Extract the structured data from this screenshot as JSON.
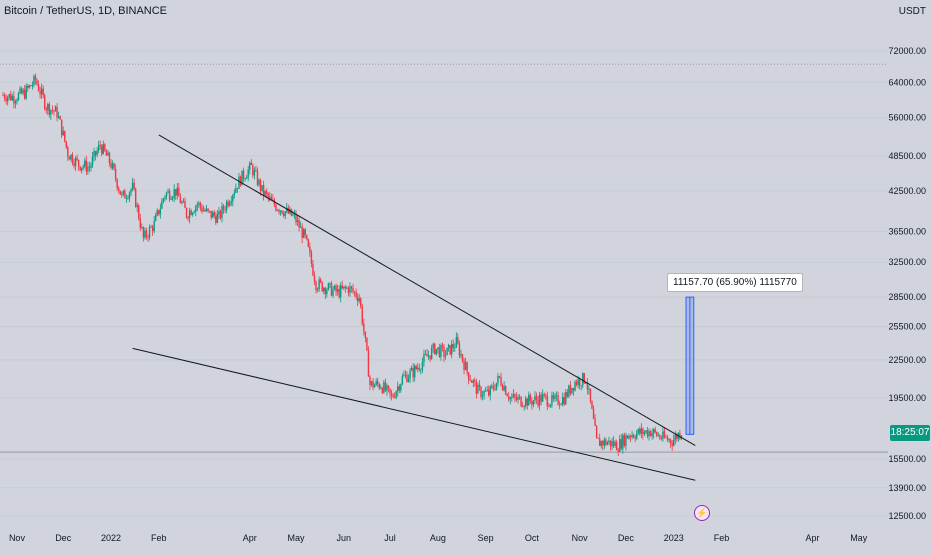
{
  "header": {
    "symbol_title": "Bitcoin / TetherUS, 1D, BINANCE",
    "currency_unit": "USDT"
  },
  "price_label": {
    "countdown": "18:25:07"
  },
  "measure_label": "11157.70 (65.90%) 1115770",
  "icons": {
    "event_icon": "lightning-bolt-icon"
  },
  "colors": {
    "background": "#d1d4dc",
    "up": "#089981",
    "down": "#f23645",
    "trendline": "#131722",
    "measure_fill": "#2962ff",
    "grid": "#c8cbd3"
  },
  "chart_data": {
    "type": "candlestick",
    "title": "Bitcoin / TetherUS, 1D, BINANCE",
    "y_axis_label": "USDT",
    "y_scale": "log",
    "y_ticks": [
      72000,
      64000,
      56000,
      48500,
      42500,
      36500,
      32500,
      28500,
      25500,
      22500,
      19500,
      15500,
      13900,
      12500
    ],
    "y_tick_labels": [
      "72000.00",
      "64000.00",
      "56000.00",
      "48500.00",
      "42500.00",
      "36500.00",
      "32500.00",
      "28500.00",
      "25500.00",
      "22500.00",
      "19500.00",
      "15500.00",
      "13900.00",
      "12500.00"
    ],
    "x_tick_labels": [
      "Nov",
      "Dec",
      "2022",
      "Feb",
      "Apr",
      "May",
      "Jun",
      "Jul",
      "Aug",
      "Sep",
      "Oct",
      "Nov",
      "Dec",
      "2023",
      "Feb",
      "Apr",
      "May"
    ],
    "x_tick_dates": [
      "2021-11-01",
      "2021-12-01",
      "2022-01-01",
      "2022-02-01",
      "2022-04-01",
      "2022-05-01",
      "2022-06-01",
      "2022-07-01",
      "2022-08-01",
      "2022-09-01",
      "2022-10-01",
      "2022-11-01",
      "2022-12-01",
      "2023-01-01",
      "2023-02-01",
      "2023-04-01",
      "2023-05-01"
    ],
    "x_range": [
      "2021-10-21",
      "2023-05-20"
    ],
    "y_range": [
      12000,
      80000
    ],
    "series": {
      "name": "BTCUSDT",
      "weekly_close": [
        [
          "2021-10-23",
          61000
        ],
        [
          "2021-10-30",
          60500
        ],
        [
          "2021-11-06",
          61500
        ],
        [
          "2021-11-13",
          64500
        ],
        [
          "2021-11-20",
          58500
        ],
        [
          "2021-11-27",
          57000
        ],
        [
          "2021-12-04",
          49000
        ],
        [
          "2021-12-11",
          47000
        ],
        [
          "2021-12-18",
          46500
        ],
        [
          "2021-12-25",
          50500
        ],
        [
          "2022-01-01",
          47000
        ],
        [
          "2022-01-08",
          41500
        ],
        [
          "2022-01-15",
          43000
        ],
        [
          "2022-01-22",
          35500
        ],
        [
          "2022-01-29",
          37500
        ],
        [
          "2022-02-05",
          42000
        ],
        [
          "2022-02-12",
          42500
        ],
        [
          "2022-02-19",
          39000
        ],
        [
          "2022-02-26",
          40500
        ],
        [
          "2022-03-05",
          39000
        ],
        [
          "2022-03-12",
          38500
        ],
        [
          "2022-03-19",
          41500
        ],
        [
          "2022-03-26",
          44500
        ],
        [
          "2022-04-02",
          46500
        ],
        [
          "2022-04-09",
          42500
        ],
        [
          "2022-04-16",
          40500
        ],
        [
          "2022-04-23",
          39500
        ],
        [
          "2022-04-30",
          38500
        ],
        [
          "2022-05-07",
          35500
        ],
        [
          "2022-05-14",
          30000
        ],
        [
          "2022-05-21",
          29500
        ],
        [
          "2022-05-28",
          29000
        ],
        [
          "2022-06-04",
          29500
        ],
        [
          "2022-06-11",
          28500
        ],
        [
          "2022-06-18",
          20500
        ],
        [
          "2022-06-25",
          20500
        ],
        [
          "2022-07-02",
          19500
        ],
        [
          "2022-07-09",
          21000
        ],
        [
          "2022-07-16",
          21500
        ],
        [
          "2022-07-23",
          22500
        ],
        [
          "2022-07-30",
          23500
        ],
        [
          "2022-08-06",
          23000
        ],
        [
          "2022-08-13",
          24000
        ],
        [
          "2022-08-20",
          21500
        ],
        [
          "2022-08-27",
          20000
        ],
        [
          "2022-09-03",
          19800
        ],
        [
          "2022-09-10",
          21000
        ],
        [
          "2022-09-17",
          19500
        ],
        [
          "2022-09-24",
          19300
        ],
        [
          "2022-10-01",
          19300
        ],
        [
          "2022-10-08",
          19500
        ],
        [
          "2022-10-15",
          19200
        ],
        [
          "2022-10-22",
          19500
        ],
        [
          "2022-10-29",
          20700
        ],
        [
          "2022-11-05",
          21000
        ],
        [
          "2022-11-12",
          16500
        ],
        [
          "2022-11-19",
          16500
        ],
        [
          "2022-11-26",
          16300
        ],
        [
          "2022-12-03",
          17000
        ],
        [
          "2022-12-10",
          17100
        ],
        [
          "2022-12-17",
          17200
        ],
        [
          "2022-12-24",
          16800
        ],
        [
          "2022-12-31",
          16600
        ],
        [
          "2023-01-07",
          17300
        ]
      ]
    },
    "annotations": {
      "upper_trendline": [
        [
          "2022-02-01",
          52500
        ],
        [
          "2023-01-15",
          16300
        ]
      ],
      "lower_trendline": [
        [
          "2022-01-15",
          23500
        ],
        [
          "2023-01-15",
          14300
        ]
      ],
      "horizontal_line": 15900,
      "top_dotted_line": 68500,
      "measure": {
        "from_date": "2023-01-09",
        "to_date": "2023-01-14",
        "from_price": 17000,
        "to_price": 28500
      }
    }
  }
}
